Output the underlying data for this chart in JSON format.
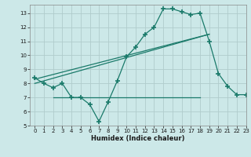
{
  "title": "",
  "xlabel": "Humidex (Indice chaleur)",
  "background_color": "#cce8e8",
  "grid_color": "#b0cccc",
  "line_color": "#1a7a6a",
  "xlim": [
    -0.5,
    23
  ],
  "ylim": [
    5,
    13.6
  ],
  "yticks": [
    5,
    6,
    7,
    8,
    9,
    10,
    11,
    12,
    13
  ],
  "xticks": [
    0,
    1,
    2,
    3,
    4,
    5,
    6,
    7,
    8,
    9,
    10,
    11,
    12,
    13,
    14,
    15,
    16,
    17,
    18,
    19,
    20,
    21,
    22,
    23
  ],
  "line1_x": [
    0,
    1,
    2,
    3,
    4,
    5,
    6,
    7,
    8,
    9,
    10,
    11,
    12,
    13,
    14,
    15,
    16,
    17,
    18,
    19,
    20,
    21,
    22,
    23
  ],
  "line1_y": [
    8.4,
    8.0,
    7.7,
    8.0,
    7.0,
    7.0,
    6.5,
    5.3,
    6.7,
    8.2,
    9.9,
    10.6,
    11.5,
    12.0,
    13.3,
    13.3,
    13.1,
    12.9,
    13.0,
    11.0,
    8.7,
    7.8,
    7.2,
    7.2
  ],
  "line2_x": [
    2,
    18
  ],
  "line2_y": [
    7.0,
    7.0
  ],
  "line3_x": [
    0,
    19
  ],
  "line3_y": [
    8.0,
    11.5
  ],
  "line4_x": [
    0,
    19
  ],
  "line4_y": [
    8.3,
    11.5
  ]
}
